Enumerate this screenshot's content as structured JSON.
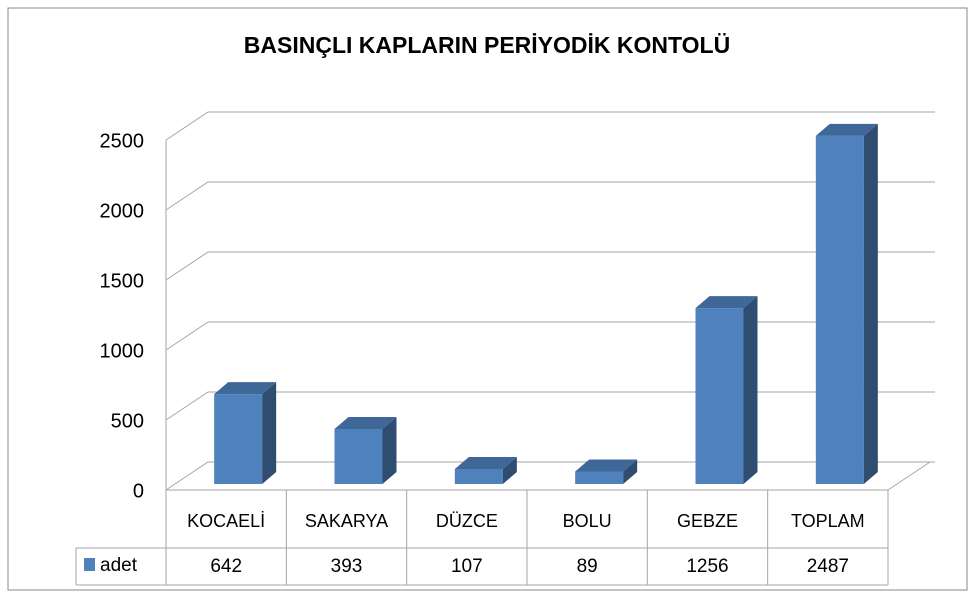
{
  "chart_data": {
    "type": "bar3d",
    "title": "BASINÇLI KAPLARIN PERİYODİK KONTOLÜ",
    "categories": [
      "KOCAELİ",
      "SAKARYA",
      "DÜZCE",
      "BOLU",
      "GEBZE",
      "TOPLAM"
    ],
    "series": [
      {
        "name": "adet",
        "color": "#4f81bd",
        "values": [
          642,
          393,
          107,
          89,
          1256,
          2487
        ]
      }
    ],
    "ylim": [
      0,
      2500
    ],
    "yticks": [
      0,
      500,
      1000,
      1500,
      2000,
      2500
    ],
    "grid": true,
    "data_table": true
  }
}
